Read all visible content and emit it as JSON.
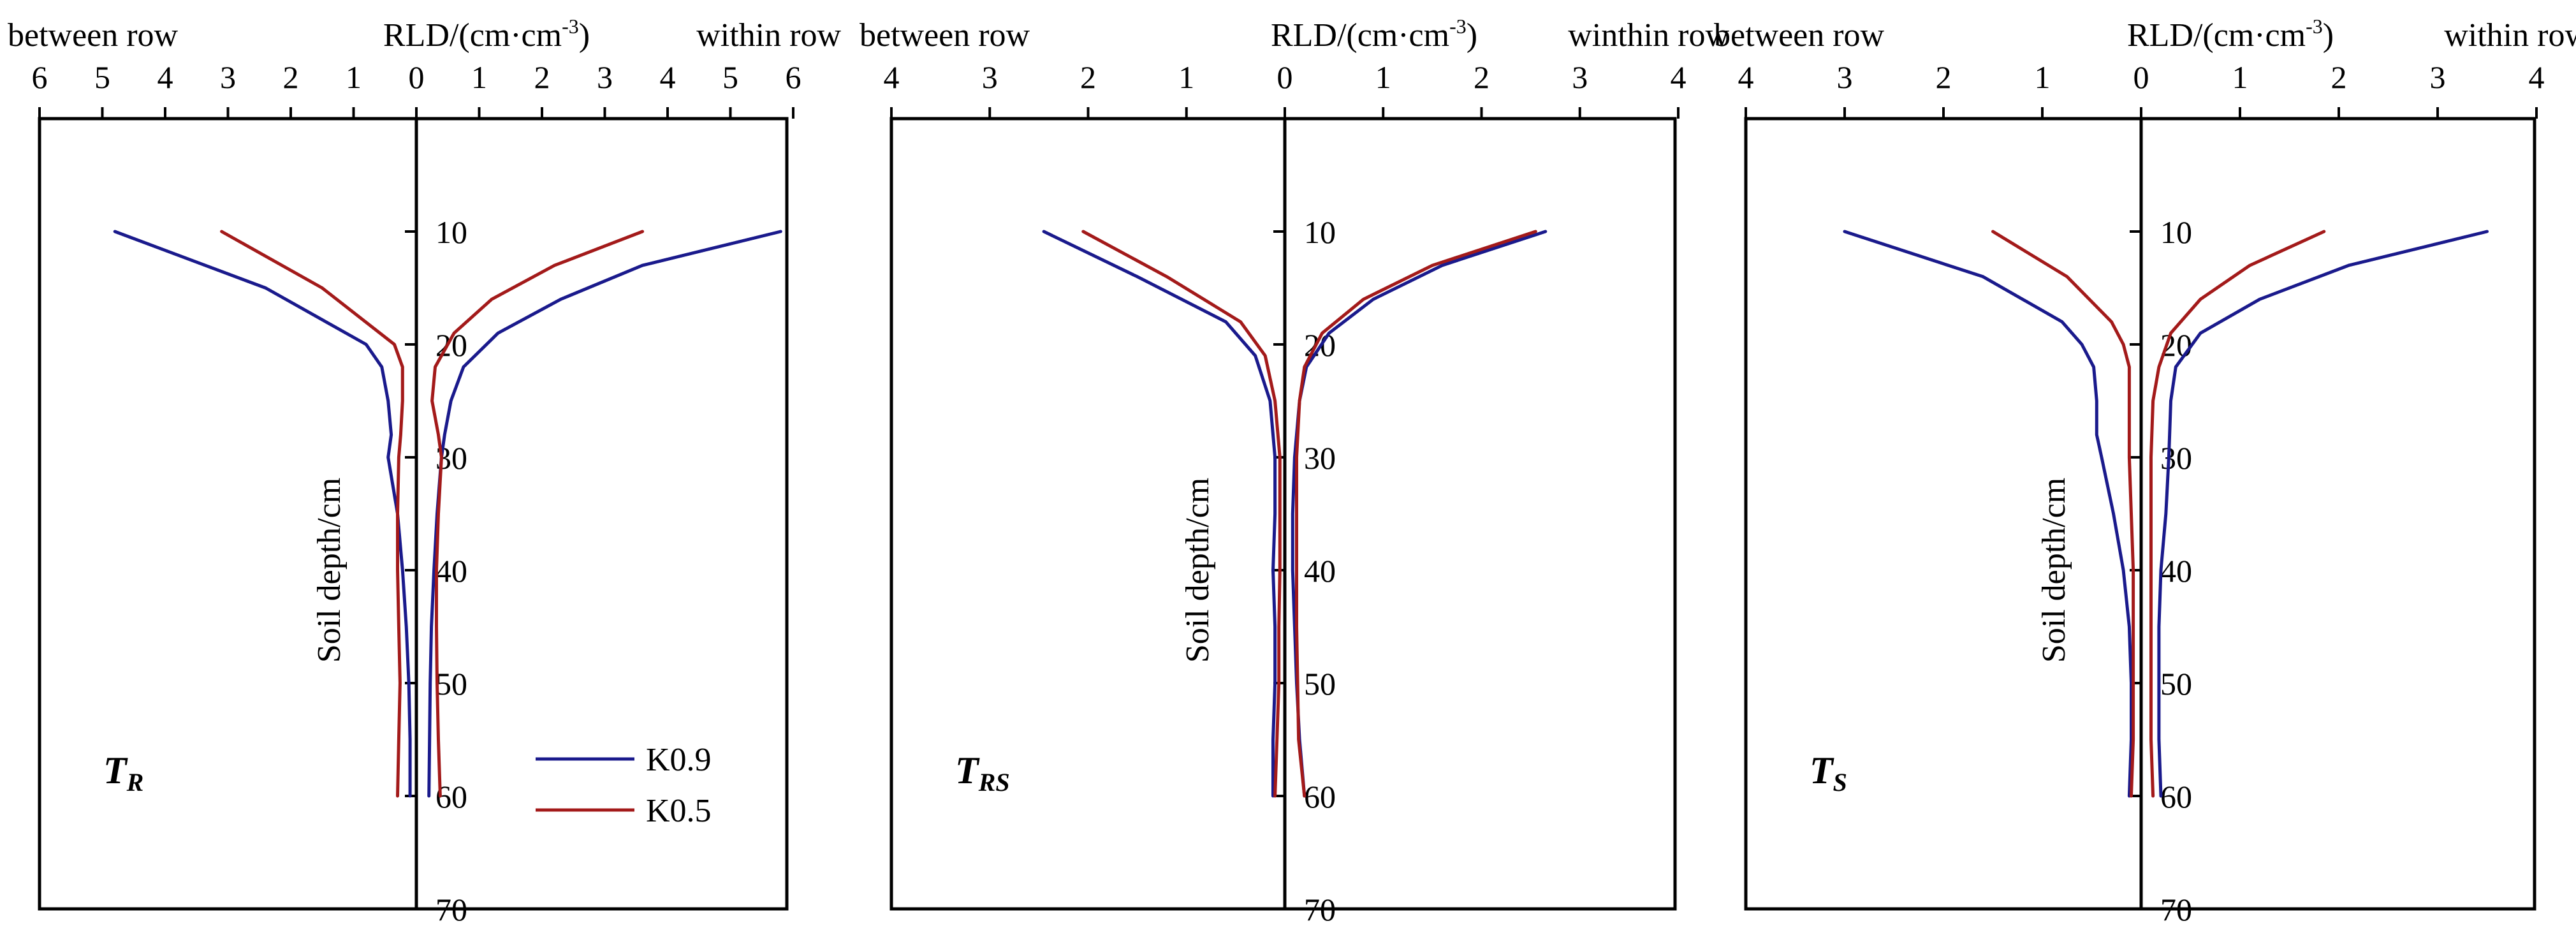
{
  "figure": {
    "colors": {
      "K0.9": "#1a1a8c",
      "K0.5": "#a31a1a",
      "axis": "#000000"
    },
    "depth_tick_labels": [
      "10",
      "20",
      "30",
      "40",
      "50",
      "60",
      "70"
    ],
    "legend": {
      "entries": [
        "K0.9",
        "K0.5"
      ]
    }
  },
  "chart_data": [
    {
      "type": "line",
      "panel_label": "T",
      "panel_label_sub": "R",
      "title_left": "between row",
      "title_center": "RLD/(cm·cm",
      "title_center_sup": "-3",
      "title_center_end": ")",
      "title_right": "within row",
      "ylabel": "Soil depth/cm",
      "xlim": [
        -6,
        6
      ],
      "ylim": [
        0,
        70
      ],
      "x_tick_labels": [
        "6",
        "5",
        "4",
        "3",
        "2",
        "1",
        "0",
        "1",
        "2",
        "3",
        "4",
        "5",
        "6"
      ],
      "has_legend": true,
      "series": [
        {
          "name": "K0.9",
          "side": "between",
          "depth": [
            10,
            15,
            20,
            22,
            25,
            28,
            30,
            35,
            40,
            45,
            50,
            55,
            60
          ],
          "values": [
            -4.8,
            -2.4,
            -0.8,
            -0.55,
            -0.45,
            -0.4,
            -0.45,
            -0.3,
            -0.22,
            -0.16,
            -0.12,
            -0.1,
            -0.1
          ]
        },
        {
          "name": "K0.9",
          "side": "within",
          "depth": [
            10,
            13,
            16,
            19,
            22,
            25,
            28,
            30,
            35,
            40,
            45,
            50,
            55,
            60
          ],
          "values": [
            5.8,
            3.6,
            2.3,
            1.3,
            0.75,
            0.55,
            0.45,
            0.4,
            0.33,
            0.28,
            0.24,
            0.22,
            0.21,
            0.2
          ]
        },
        {
          "name": "K0.5",
          "side": "between",
          "depth": [
            10,
            15,
            20,
            22,
            25,
            28,
            30,
            35,
            40,
            45,
            50,
            55,
            60
          ],
          "values": [
            -3.1,
            -1.5,
            -0.35,
            -0.22,
            -0.22,
            -0.25,
            -0.28,
            -0.3,
            -0.3,
            -0.28,
            -0.26,
            -0.28,
            -0.3
          ]
        },
        {
          "name": "K0.5",
          "side": "within",
          "depth": [
            10,
            13,
            16,
            19,
            22,
            25,
            28,
            30,
            35,
            40,
            45,
            50,
            55,
            60
          ],
          "values": [
            3.6,
            2.2,
            1.2,
            0.6,
            0.3,
            0.25,
            0.35,
            0.4,
            0.35,
            0.32,
            0.32,
            0.33,
            0.35,
            0.38
          ]
        }
      ]
    },
    {
      "type": "line",
      "panel_label": "T",
      "panel_label_sub": "RS",
      "title_left": "between row",
      "title_center": "RLD/(cm·cm",
      "title_center_sup": "-3",
      "title_center_end": ")",
      "title_right": "winthin row",
      "ylabel": "Soil depth/cm",
      "xlim": [
        -4,
        4
      ],
      "ylim": [
        0,
        70
      ],
      "x_tick_labels": [
        "4",
        "3",
        "2",
        "1",
        "0",
        "1",
        "2",
        "3",
        "4"
      ],
      "has_legend": false,
      "series": [
        {
          "name": "K0.9",
          "side": "between",
          "depth": [
            10,
            14,
            18,
            21,
            25,
            30,
            35,
            40,
            45,
            50,
            55,
            60
          ],
          "values": [
            -2.45,
            -1.5,
            -0.6,
            -0.3,
            -0.15,
            -0.1,
            -0.1,
            -0.12,
            -0.1,
            -0.1,
            -0.12,
            -0.12
          ]
        },
        {
          "name": "K0.9",
          "side": "within",
          "depth": [
            10,
            13,
            16,
            19,
            22,
            25,
            30,
            35,
            40,
            45,
            50,
            55,
            60
          ],
          "values": [
            2.65,
            1.6,
            0.9,
            0.45,
            0.22,
            0.15,
            0.1,
            0.08,
            0.08,
            0.1,
            0.12,
            0.15,
            0.2
          ]
        },
        {
          "name": "K0.5",
          "side": "between",
          "depth": [
            10,
            14,
            18,
            21,
            25,
            30,
            35,
            40,
            45,
            50,
            55,
            60
          ],
          "values": [
            -2.05,
            -1.2,
            -0.45,
            -0.2,
            -0.1,
            -0.05,
            -0.05,
            -0.05,
            -0.06,
            -0.06,
            -0.08,
            -0.1
          ]
        },
        {
          "name": "K0.5",
          "side": "within",
          "depth": [
            10,
            13,
            16,
            19,
            22,
            25,
            30,
            35,
            40,
            45,
            50,
            55,
            60
          ],
          "values": [
            2.55,
            1.5,
            0.8,
            0.38,
            0.2,
            0.15,
            0.12,
            0.12,
            0.12,
            0.12,
            0.13,
            0.14,
            0.2
          ]
        }
      ]
    },
    {
      "type": "line",
      "panel_label": "T",
      "panel_label_sub": "S",
      "title_left": "between row",
      "title_center": "RLD/(cm·cm",
      "title_center_sup": "-3",
      "title_center_end": ")",
      "title_right": "within row",
      "ylabel": "Soil depth/cm",
      "xlim": [
        -4,
        4
      ],
      "ylim": [
        0,
        70
      ],
      "x_tick_labels": [
        "4",
        "3",
        "2",
        "1",
        "0",
        "1",
        "2",
        "3",
        "4"
      ],
      "has_legend": false,
      "series": [
        {
          "name": "K0.9",
          "side": "between",
          "depth": [
            10,
            14,
            18,
            20,
            22,
            25,
            28,
            30,
            35,
            40,
            45,
            50,
            55,
            60
          ],
          "values": [
            -3.0,
            -1.6,
            -0.8,
            -0.6,
            -0.48,
            -0.45,
            -0.45,
            -0.4,
            -0.28,
            -0.18,
            -0.12,
            -0.1,
            -0.1,
            -0.12
          ]
        },
        {
          "name": "K0.9",
          "side": "within",
          "depth": [
            10,
            13,
            16,
            19,
            22,
            25,
            30,
            35,
            40,
            45,
            50,
            55,
            60
          ],
          "values": [
            3.5,
            2.1,
            1.2,
            0.6,
            0.35,
            0.3,
            0.28,
            0.25,
            0.2,
            0.18,
            0.18,
            0.18,
            0.2
          ]
        },
        {
          "name": "K0.5",
          "side": "between",
          "depth": [
            10,
            14,
            18,
            20,
            22,
            25,
            30,
            35,
            40,
            45,
            50,
            55,
            60
          ],
          "values": [
            -1.5,
            -0.75,
            -0.3,
            -0.18,
            -0.12,
            -0.12,
            -0.12,
            -0.1,
            -0.08,
            -0.08,
            -0.08,
            -0.08,
            -0.1
          ]
        },
        {
          "name": "K0.5",
          "side": "within",
          "depth": [
            10,
            13,
            16,
            19,
            22,
            25,
            30,
            35,
            40,
            45,
            50,
            55,
            60
          ],
          "values": [
            1.85,
            1.1,
            0.6,
            0.3,
            0.18,
            0.12,
            0.1,
            0.1,
            0.1,
            0.1,
            0.1,
            0.1,
            0.12
          ]
        }
      ]
    }
  ]
}
